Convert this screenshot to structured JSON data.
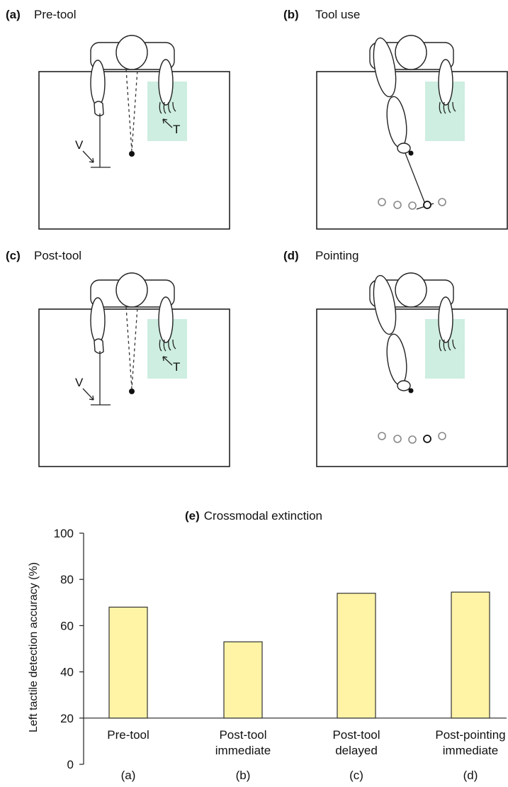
{
  "panels": {
    "a": {
      "letter": "(a)",
      "title": "Pre-tool",
      "v_label": "V",
      "t_label": "T"
    },
    "b": {
      "letter": "(b)",
      "title": "Tool use"
    },
    "c": {
      "letter": "(c)",
      "title": "Post-tool",
      "v_label": "V",
      "t_label": "T"
    },
    "d": {
      "letter": "(d)",
      "title": "Pointing"
    }
  },
  "chart_data": {
    "type": "bar",
    "title_letter": "(e)",
    "title": "Crossmodal extinction",
    "ylabel": "Left tactile detection accuracy (%)",
    "xlabel": "",
    "ylim": [
      0,
      100
    ],
    "yticks": [
      0,
      20,
      40,
      60,
      80,
      100
    ],
    "baseline": 20,
    "categories": [
      {
        "line1": "Pre-tool",
        "line2": "",
        "letter": "(a)"
      },
      {
        "line1": "Post-tool",
        "line2": "immediate",
        "letter": "(b)"
      },
      {
        "line1": "Post-tool",
        "line2": "delayed",
        "letter": "(c)"
      },
      {
        "line1": "Post-pointing",
        "line2": "immediate",
        "letter": "(d)"
      }
    ],
    "values": [
      68,
      53,
      74,
      74.5
    ],
    "colors": {
      "bar": "#fff3a6",
      "zone": "#cdeee0"
    }
  }
}
